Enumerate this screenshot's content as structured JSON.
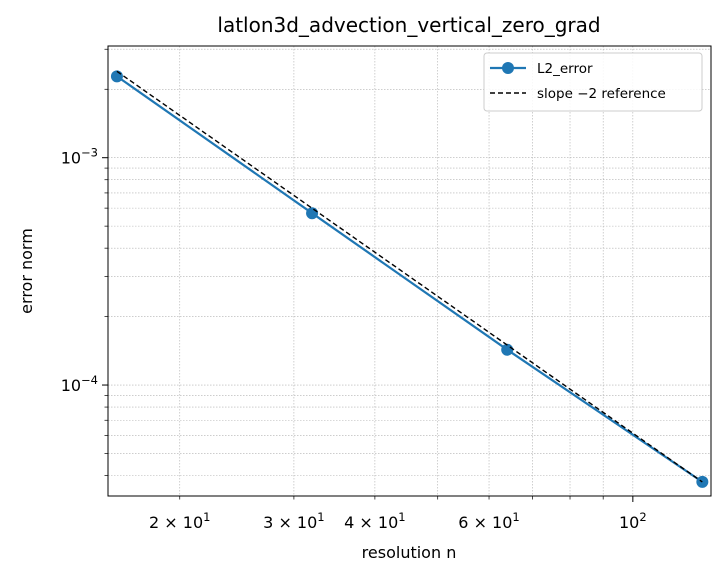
{
  "chart_data": {
    "type": "line",
    "title": "latlon3d_advection_vertical_zero_grad",
    "xlabel": "resolution n",
    "ylabel": "error norm",
    "xscale": "log",
    "yscale": "log",
    "xlim": [
      15.5,
      132
    ],
    "ylim": [
      3.25e-05,
      0.0031
    ],
    "grid": true,
    "legend_position": "top-right",
    "series": [
      {
        "name": "L2_error",
        "style": "solid line with circle markers",
        "color": "#1f77b4",
        "x": [
          16,
          32,
          64,
          128
        ],
        "y": [
          0.00228,
          0.00057,
          0.000143,
          3.75e-05
        ]
      },
      {
        "name": "slope −2 reference",
        "style": "dashed",
        "color": "#000000",
        "x": [
          16,
          128
        ],
        "y": [
          0.0024,
          3.75e-05
        ]
      }
    ],
    "x_ticks": [
      {
        "value": 20,
        "base": "2 × 10",
        "exp": "1"
      },
      {
        "value": 30,
        "base": "3 × 10",
        "exp": "1"
      },
      {
        "value": 40,
        "base": "4 × 10",
        "exp": "1"
      },
      {
        "value": 60,
        "base": "6 × 10",
        "exp": "1"
      },
      {
        "value": 100,
        "base": "10",
        "exp": "2"
      }
    ],
    "y_ticks": [
      {
        "value": 0.001,
        "base": "10",
        "exp": "−3"
      },
      {
        "value": 0.0001,
        "base": "10",
        "exp": "−4"
      }
    ]
  }
}
